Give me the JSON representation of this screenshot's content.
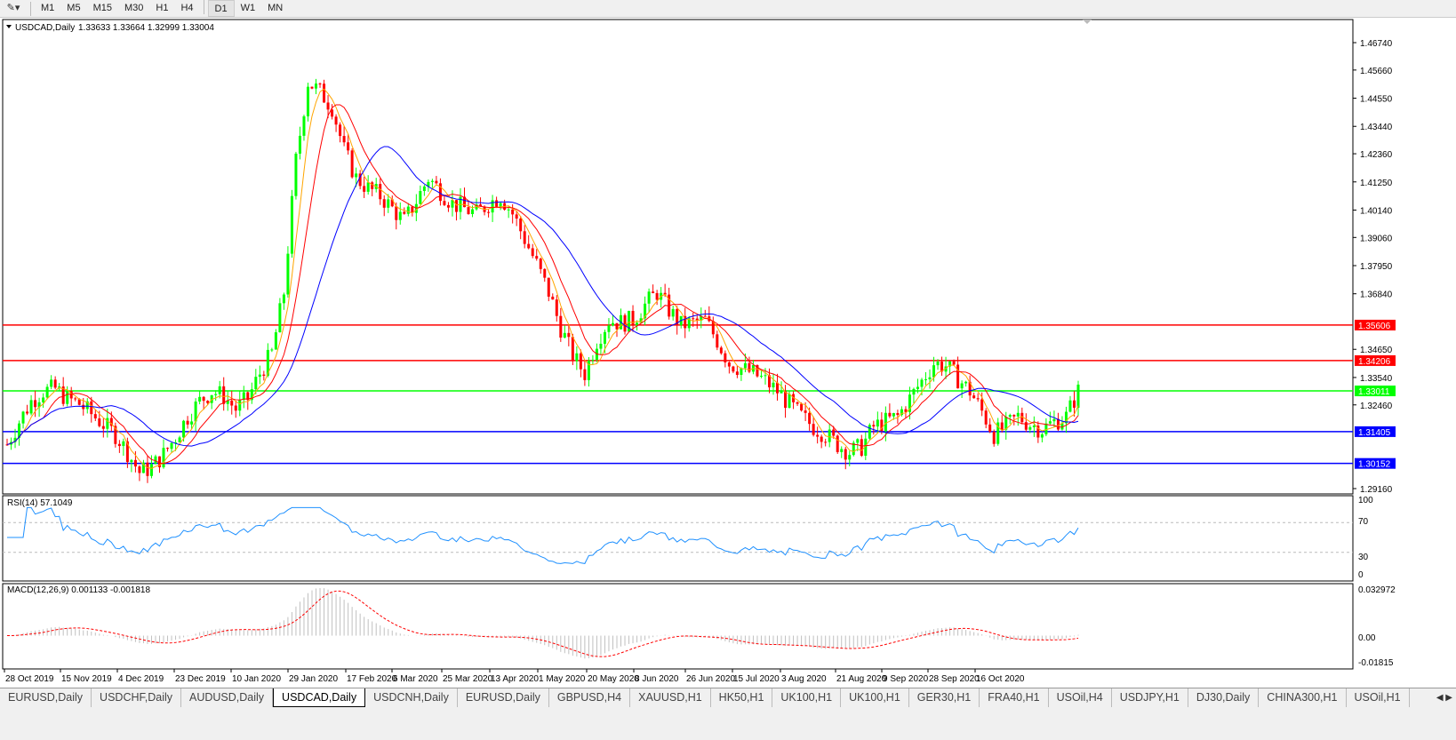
{
  "toolbar": {
    "timeframes": [
      "M1",
      "M5",
      "M15",
      "M30",
      "H1",
      "H4",
      "D1",
      "W1",
      "MN"
    ],
    "active": "D1",
    "tools_icon": "crosshair-line-tools-icon"
  },
  "chart_data": {
    "type": "candlestick",
    "symbol_header": "USDCAD,Daily",
    "ohlc_header": "1.33633 1.33664 1.32999 1.33004",
    "closes": [
      1.309,
      1.318,
      1.326,
      1.33,
      1.331,
      1.327,
      1.325,
      1.321,
      1.317,
      1.313,
      1.306,
      1.298,
      1.3,
      1.305,
      1.312,
      1.32,
      1.326,
      1.33,
      1.328,
      1.323,
      1.327,
      1.337,
      1.345,
      1.369,
      1.421,
      1.452,
      1.448,
      1.442,
      1.425,
      1.414,
      1.41,
      1.407,
      1.402,
      1.397,
      1.405,
      1.414,
      1.409,
      1.404,
      1.402,
      1.4,
      1.404,
      1.407,
      1.4,
      1.39,
      1.38,
      1.369,
      1.355,
      1.344,
      1.337,
      1.35,
      1.358,
      1.357,
      1.358,
      1.364,
      1.369,
      1.362,
      1.356,
      1.357,
      1.358,
      1.35,
      1.341,
      1.339,
      1.337,
      1.334,
      1.33,
      1.325,
      1.32,
      1.316,
      1.313,
      1.309,
      1.306,
      1.308,
      1.316,
      1.318,
      1.32,
      1.327,
      1.334,
      1.341,
      1.34,
      1.335,
      1.33,
      1.322,
      1.313,
      1.316,
      1.32,
      1.317,
      1.315,
      1.318,
      1.32,
      1.33
    ],
    "price_axis": [
      "1.46740",
      "1.45660",
      "1.44550",
      "1.43440",
      "1.42360",
      "1.41250",
      "1.40140",
      "1.39060",
      "1.37950",
      "1.36840",
      "1.34650",
      "1.33540",
      "1.32460",
      "1.29160"
    ],
    "ylim": [
      1.2916,
      1.4674
    ],
    "levels": [
      {
        "value": "1.35606",
        "color": "#ff0000"
      },
      {
        "value": "1.34206",
        "color": "#ff0000"
      },
      {
        "value": "1.33011",
        "color": "#00ff00"
      },
      {
        "value": "1.31405",
        "color": "#0000ff"
      },
      {
        "value": "1.30152",
        "color": "#0000ff"
      }
    ],
    "moving_averages": [
      {
        "color": "#ffa500"
      },
      {
        "color": "#ff0000"
      },
      {
        "color": "#0000ff"
      }
    ],
    "up_color": "#00ff00",
    "down_color": "#ff0000",
    "x_ticks": [
      "28 Oct 2019",
      "15 Nov 2019",
      "4 Dec 2019",
      "23 Dec 2019",
      "10 Jan 2020",
      "29 Jan 2020",
      "17 Feb 2020",
      "6 Mar 2020",
      "25 Mar 2020",
      "13 Apr 2020",
      "1 May 2020",
      "20 May 2020",
      "8 Jun 2020",
      "26 Jun 2020",
      "15 Jul 2020",
      "3 Aug 2020",
      "21 Aug 2020",
      "9 Sep 2020",
      "28 Sep 2020",
      "16 Oct 2020"
    ],
    "rsi": {
      "label": "RSI(14) 57.1049",
      "axis": [
        "100",
        "70",
        "30",
        "0"
      ],
      "levels": [
        70,
        30
      ],
      "color": "#1e90ff"
    },
    "macd": {
      "label": "MACD(12,26,9) 0.001133 -0.001818",
      "axis": [
        "0.032972",
        "0.00",
        "-0.01815"
      ],
      "ylim": [
        -0.01815,
        0.032972
      ],
      "hist_color": "#c0c0c0",
      "signal_color": "#ff0000"
    }
  },
  "tabs": {
    "items": [
      "EURUSD,Daily",
      "USDCHF,Daily",
      "AUDUSD,Daily",
      "USDCAD,Daily",
      "USDCNH,Daily",
      "EURUSD,Daily",
      "GBPUSD,H4",
      "XAUUSD,H1",
      "HK50,H1",
      "UK100,H1",
      "UK100,H1",
      "GER30,H1",
      "FRA40,H1",
      "USOil,H4",
      "USDJPY,H1",
      "DJ30,Daily",
      "CHINA300,H1",
      "USOil,H1"
    ],
    "active": 3,
    "nav": "◀ ▶"
  }
}
